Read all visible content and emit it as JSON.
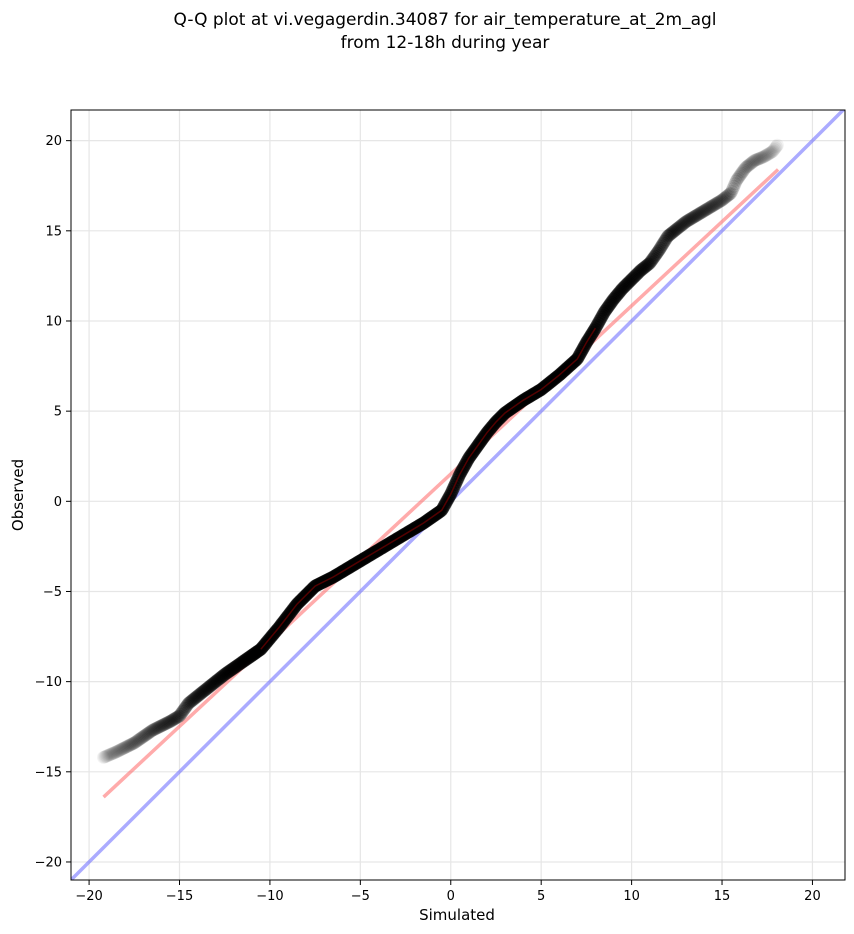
{
  "chart_data": {
    "type": "scatter",
    "title": "Q-Q plot at vi.vegagerdin.34087 for air_temperature_at_2m_agl",
    "subtitle": "from 12-18h during year",
    "xlabel": "Simulated",
    "ylabel": "Observed",
    "xlim": [
      -21,
      21.8
    ],
    "ylim": [
      -21,
      21.7
    ],
    "xticks": [
      -20,
      -15,
      -10,
      -5,
      0,
      5,
      10,
      15,
      20
    ],
    "yticks": [
      -20,
      -15,
      -10,
      -5,
      0,
      5,
      10,
      15,
      20
    ],
    "xtick_labels": [
      "−20",
      "−15",
      "−10",
      "−5",
      "0",
      "5",
      "10",
      "15",
      "20"
    ],
    "ytick_labels": [
      "−20",
      "−15",
      "−10",
      "−5",
      "0",
      "5",
      "10",
      "15",
      "20"
    ],
    "grid": true,
    "colors": {
      "points": "#000000",
      "fit_line": "#ff6666",
      "identity_line": "#6666ff",
      "grid": "#e6e6e6"
    },
    "quantile_curve": [
      [
        -19.2,
        -14.2
      ],
      [
        -18.5,
        -13.9
      ],
      [
        -17.5,
        -13.4
      ],
      [
        -16.5,
        -12.7
      ],
      [
        -15.5,
        -12.2
      ],
      [
        -15.0,
        -11.9
      ],
      [
        -14.5,
        -11.2
      ],
      [
        -13.5,
        -10.4
      ],
      [
        -12.5,
        -9.6
      ],
      [
        -11.5,
        -8.9
      ],
      [
        -10.5,
        -8.2
      ],
      [
        -9.5,
        -7.0
      ],
      [
        -8.5,
        -5.7
      ],
      [
        -7.5,
        -4.7
      ],
      [
        -6.5,
        -4.2
      ],
      [
        -5.5,
        -3.6
      ],
      [
        -4.5,
        -3.0
      ],
      [
        -3.5,
        -2.4
      ],
      [
        -2.5,
        -1.8
      ],
      [
        -1.5,
        -1.2
      ],
      [
        -0.5,
        -0.5
      ],
      [
        0.0,
        0.4
      ],
      [
        0.5,
        1.5
      ],
      [
        1.0,
        2.4
      ],
      [
        1.5,
        3.1
      ],
      [
        2.0,
        3.8
      ],
      [
        2.5,
        4.4
      ],
      [
        3.0,
        4.9
      ],
      [
        4.0,
        5.6
      ],
      [
        5.0,
        6.2
      ],
      [
        6.0,
        7.0
      ],
      [
        7.0,
        7.9
      ],
      [
        7.5,
        8.8
      ],
      [
        8.0,
        9.6
      ],
      [
        8.5,
        10.5
      ],
      [
        9.0,
        11.2
      ],
      [
        9.5,
        11.8
      ],
      [
        10.0,
        12.3
      ],
      [
        10.5,
        12.8
      ],
      [
        11.0,
        13.2
      ],
      [
        11.5,
        13.9
      ],
      [
        12.0,
        14.7
      ],
      [
        12.5,
        15.1
      ],
      [
        13.0,
        15.5
      ],
      [
        13.5,
        15.8
      ],
      [
        14.0,
        16.1
      ],
      [
        14.5,
        16.4
      ],
      [
        15.0,
        16.7
      ],
      [
        15.5,
        17.1
      ],
      [
        15.8,
        17.8
      ],
      [
        16.3,
        18.5
      ],
      [
        16.8,
        18.9
      ],
      [
        17.3,
        19.1
      ],
      [
        17.8,
        19.4
      ],
      [
        18.1,
        19.8
      ]
    ],
    "fit_line": {
      "x": [
        -19.2,
        18.1
      ],
      "y": [
        -16.4,
        18.4
      ]
    },
    "identity_line": {
      "x": [
        -21,
        21.8
      ],
      "y": [
        -21,
        21.8
      ]
    }
  }
}
